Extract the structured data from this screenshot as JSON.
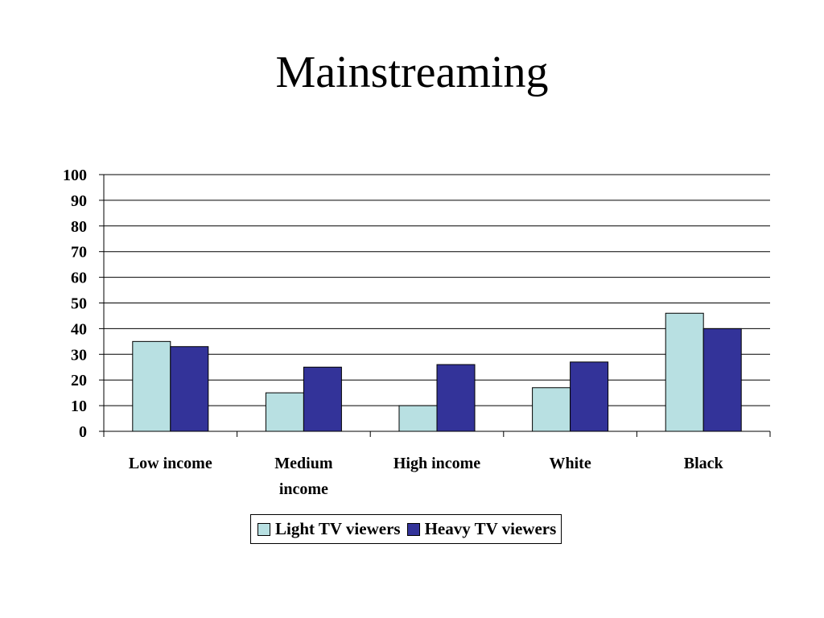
{
  "slide": {
    "title": "Mainstreaming"
  },
  "chart_data": {
    "type": "bar",
    "title": "",
    "xlabel": "",
    "ylabel": "",
    "ylim": [
      0,
      100
    ],
    "yticks": [
      0,
      10,
      20,
      30,
      40,
      50,
      60,
      70,
      80,
      90,
      100
    ],
    "grid": true,
    "legend_position": "bottom",
    "categories": [
      "Low income",
      "Medium income",
      "High income",
      "White",
      "Black"
    ],
    "category_lines": [
      [
        "Low income"
      ],
      [
        "Medium",
        "income"
      ],
      [
        "High income"
      ],
      [
        "White"
      ],
      [
        "Black"
      ]
    ],
    "series": [
      {
        "name": "Light TV viewers",
        "color": "#b8e0e2",
        "values": [
          35,
          15,
          10,
          17,
          46
        ]
      },
      {
        "name": "Heavy TV viewers",
        "color": "#333399",
        "values": [
          33,
          25,
          26,
          27,
          40
        ]
      }
    ]
  }
}
